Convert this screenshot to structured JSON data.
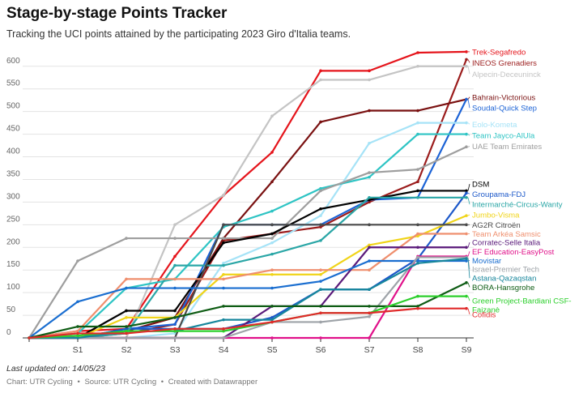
{
  "title": "Stage-by-stage Points Tracker",
  "subtitle": "Tracking the UCI points attained by the participating 2023 Giro d'Italia teams.",
  "note": "Last updated on: 14/05/23",
  "footer": {
    "chart_label": "Chart: UTR Cycling",
    "source_label": "Source: UTR Cycling",
    "created_label": "Created with Datawrapper",
    "separator": "•"
  },
  "chart_data": {
    "type": "line",
    "title": "Stage-by-stage Points Tracker",
    "xlabel": "",
    "ylabel": "",
    "ylim": [
      0,
      630
    ],
    "yticks": [
      0,
      50,
      100,
      150,
      200,
      250,
      300,
      350,
      400,
      450,
      500,
      550,
      600
    ],
    "categories": [
      "",
      "S1",
      "S2",
      "S3",
      "S4",
      "S5",
      "S6",
      "S7",
      "S8",
      "S9"
    ],
    "grid": true,
    "series": [
      {
        "name": "Trek-Segafredo",
        "color": "#e5141b",
        "label_value": 632,
        "values": [
          0,
          15,
          20,
          180,
          315,
          410,
          590,
          590,
          630,
          632
        ]
      },
      {
        "name": "INEOS Grenadiers",
        "color": "#9b1c1c",
        "label_value": 608,
        "values": [
          0,
          0,
          10,
          30,
          215,
          230,
          245,
          300,
          345,
          615
        ]
      },
      {
        "name": "Alpecin-Deceuninck",
        "color": "#c4c4c4",
        "label_value": 583,
        "values": [
          0,
          0,
          0,
          250,
          315,
          490,
          570,
          570,
          600,
          600
        ]
      },
      {
        "name": "Bahrain-Victorious",
        "color": "#7a1111",
        "label_value": 532,
        "values": [
          0,
          0,
          15,
          45,
          220,
          345,
          477,
          502,
          502,
          527
        ]
      },
      {
        "name": "Soudal-Quick Step",
        "color": "#1c63d6",
        "label_value": 508,
        "values": [
          0,
          0,
          20,
          30,
          250,
          250,
          250,
          305,
          310,
          527
        ]
      },
      {
        "name": "Eolo-Kometa",
        "color": "#a6e3f7",
        "label_value": 472,
        "values": [
          0,
          0,
          0,
          10,
          165,
          210,
          270,
          430,
          475,
          475
        ]
      },
      {
        "name": "Team Jayco-AlUla",
        "color": "#2ec4c4",
        "label_value": 447,
        "values": [
          0,
          10,
          110,
          130,
          245,
          280,
          330,
          355,
          450,
          450
        ]
      },
      {
        "name": "UAE Team Emirates",
        "color": "#9e9e9e",
        "label_value": 423,
        "values": [
          0,
          170,
          220,
          220,
          220,
          220,
          325,
          365,
          372,
          422
        ]
      },
      {
        "name": "DSM",
        "color": "#000000",
        "label_value": 340,
        "values": [
          0,
          0,
          60,
          60,
          210,
          230,
          285,
          305,
          325,
          325
        ]
      },
      {
        "name": "Groupama-FDJ",
        "color": "#1c58c9",
        "label_value": 318,
        "values": [
          0,
          0,
          20,
          20,
          20,
          45,
          107,
          107,
          175,
          320
        ]
      },
      {
        "name": "Intermarché-Circus-Wanty",
        "color": "#2aa6a6",
        "label_value": 295,
        "values": [
          0,
          0,
          10,
          160,
          160,
          185,
          215,
          310,
          310,
          310
        ]
      },
      {
        "name": "Jumbo-Visma",
        "color": "#f0d418",
        "label_value": 272,
        "values": [
          0,
          0,
          45,
          45,
          140,
          140,
          140,
          205,
          225,
          270
        ]
      },
      {
        "name": "AG2R Citroën",
        "color": "#4a4a4a",
        "label_value": 250,
        "values": [
          0,
          0,
          0,
          0,
          250,
          250,
          250,
          250,
          250,
          250
        ]
      },
      {
        "name": "Team Arkéa Samsic",
        "color": "#ef8f6e",
        "label_value": 230,
        "values": [
          0,
          15,
          130,
          130,
          130,
          150,
          150,
          150,
          230,
          230
        ]
      },
      {
        "name": "Corratec-Selle Italia",
        "color": "#5a1a7a",
        "label_value": 211,
        "values": [
          0,
          0,
          0,
          0,
          0,
          70,
          70,
          200,
          200,
          200
        ]
      },
      {
        "name": "EF Education-EasyPost",
        "color": "#e0118a",
        "label_value": 191,
        "values": [
          0,
          0,
          0,
          0,
          0,
          0,
          0,
          0,
          180,
          180
        ]
      },
      {
        "name": "Movistar",
        "color": "#1a6ed0",
        "label_value": 171,
        "values": [
          0,
          80,
          110,
          110,
          110,
          110,
          125,
          170,
          170,
          170
        ]
      },
      {
        "name": "Israel-Premier Tech",
        "color": "#9ea3a8",
        "label_value": 152,
        "values": [
          0,
          0,
          0,
          0,
          0,
          35,
          35,
          47,
          178,
          178
        ]
      },
      {
        "name": "Astana-Qazaqstan",
        "color": "#17869c",
        "label_value": 132,
        "values": [
          0,
          0,
          15,
          15,
          40,
          40,
          107,
          107,
          165,
          175
        ]
      },
      {
        "name": "BORA-Hansgrohe",
        "color": "#0e5c14",
        "label_value": 112,
        "values": [
          0,
          25,
          25,
          45,
          70,
          70,
          70,
          70,
          70,
          122
        ]
      },
      {
        "name": "Green Project-Bardiani CSF-Faizanè",
        "color": "#2bcf2b",
        "label_value": 82,
        "values": [
          0,
          5,
          15,
          15,
          15,
          35,
          55,
          55,
          92,
          92
        ]
      },
      {
        "name": "Cofidis",
        "color": "#e02a2a",
        "label_value": 52,
        "values": [
          0,
          10,
          10,
          20,
          20,
          35,
          55,
          55,
          65,
          65
        ]
      }
    ]
  }
}
